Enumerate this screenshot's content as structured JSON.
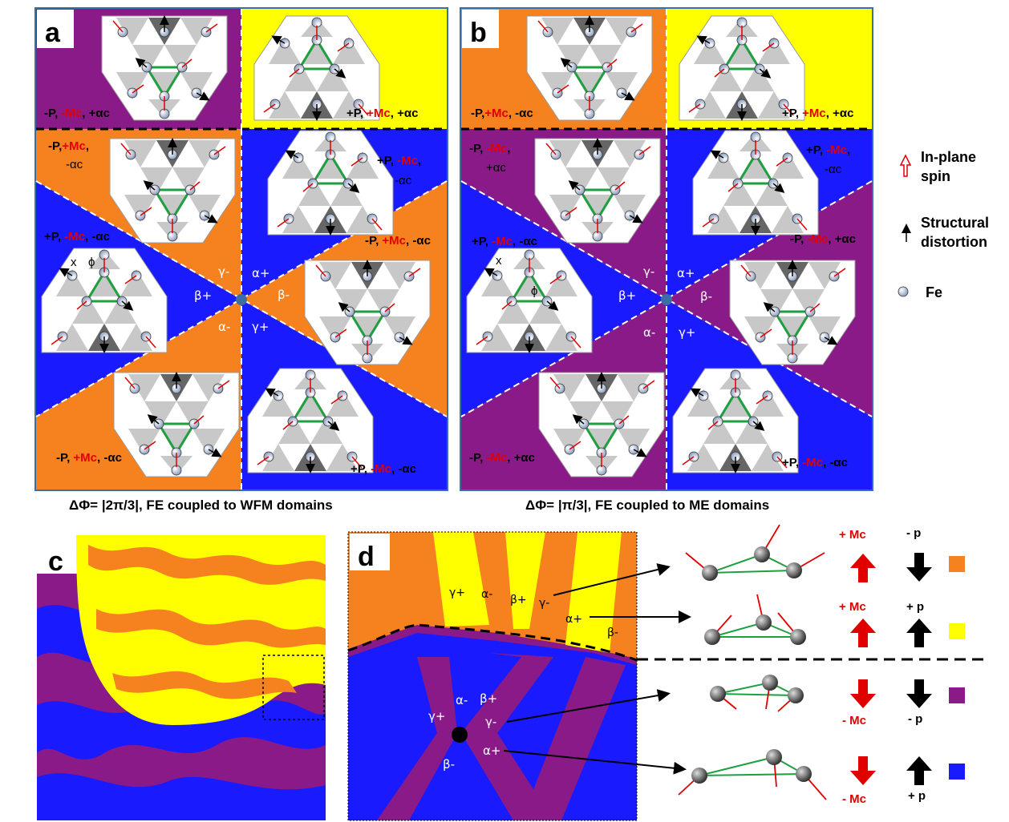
{
  "panels": {
    "a": {
      "letter": "a",
      "caption": "ΔΦ= |2π/3|, FE coupled to WFM domains",
      "regions": [
        {
          "p": "-P,",
          "m": "-Mc",
          "a": ", +αc"
        },
        {
          "p": "+P,",
          "m": "+Mc",
          "a": ", +αc"
        },
        {
          "p": "-P,",
          "m": "+Mc",
          "a": ","
        },
        {
          "p": "+P,",
          "m": "-Mc",
          "a": ","
        },
        {
          "p": "+P,",
          "m": "-Mc",
          "a": ", -αc"
        },
        {
          "p": "-P,",
          "m": "+Mc",
          "a": ", -αc"
        },
        {
          "p": "-P,",
          "m": "+Mc",
          "a": ", -αc"
        },
        {
          "p": "+P,",
          "m": "-Mc",
          "a": ", -αc"
        }
      ],
      "extra_alpha": [
        "-αc",
        "-αc"
      ],
      "greek": [
        "γ-",
        "α+",
        "β+",
        "β-",
        "α-",
        "γ+"
      ],
      "angle_x": "x",
      "angle_phi": "ϕ"
    },
    "b": {
      "letter": "b",
      "caption": "ΔΦ= |π/3|, FE coupled to ME domains",
      "regions": [
        {
          "p": "-P,",
          "m": "+Mc",
          "a": ", -αc"
        },
        {
          "p": "+P,",
          "m": "+Mc",
          "a": ", +αc"
        },
        {
          "p": "-P,",
          "m": "-Mc",
          "a": ","
        },
        {
          "p": "+P,",
          "m": "-Mc",
          "a": ","
        },
        {
          "p": "+P,",
          "m": "-Mc",
          "a": ", -αc"
        },
        {
          "p": "-P,",
          "m": "-Mc",
          "a": ", +αc"
        },
        {
          "p": "-P,",
          "m": "-Mc",
          "a": ", +αc"
        },
        {
          "p": "+P,",
          "m": "-Mc",
          "a": ", -αc"
        }
      ],
      "extra_alpha": [
        "+αc",
        "-αc"
      ],
      "greek": [
        "γ-",
        "α+",
        "β+",
        "β-",
        "α-",
        "γ+"
      ],
      "angle_x": "x",
      "angle_phi": "ϕ"
    },
    "c": {
      "letter": "c"
    },
    "d": {
      "letter": "d",
      "greek_top": [
        "γ+",
        "α-",
        "β+",
        "γ-",
        "α+",
        "β-"
      ],
      "greek_bottom": [
        "α-",
        "β+",
        "γ+",
        "γ-",
        "β-",
        "α+"
      ]
    }
  },
  "legend": {
    "spin": "In-plane",
    "spin2": "spin",
    "struct": "Structural",
    "struct2": "distortion",
    "fe": "Fe"
  },
  "key": [
    {
      "m": "+ Mc",
      "p": "- p",
      "swatch": "#f5821f"
    },
    {
      "m": "+ Mc",
      "p": "+ p",
      "swatch": "#ffff00"
    },
    {
      "m": "- Mc",
      "p": "- p",
      "swatch": "#8b1a89"
    },
    {
      "m": "- Mc",
      "p": "+ p",
      "swatch": "#1a1aff"
    }
  ],
  "colors": {
    "purple": "#8b1a89",
    "yellow": "#ffff00",
    "orange": "#f5821f",
    "blue": "#1a1aff"
  }
}
